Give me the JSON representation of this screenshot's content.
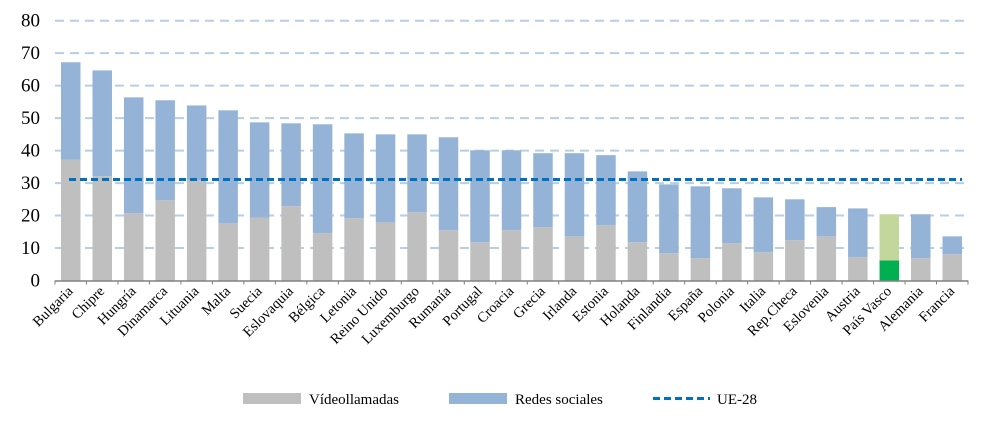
{
  "chart_data": {
    "type": "bar",
    "stacked": true,
    "categories": [
      "Bulgaria",
      "Chipre",
      "Hungría",
      "Dinamarca",
      "Lituania",
      "Malta",
      "Suecia",
      "Eslovaquia",
      "Bélgica",
      "Letonia",
      "Reino Unido",
      "Luxemburgo",
      "Rumanía",
      "Portugal",
      "Croacia",
      "Grecia",
      "Irlanda",
      "Estonia",
      "Holanda",
      "Finlandia",
      "España",
      "Polonia",
      "Italia",
      "Rep.Checa",
      "Eslovenia",
      "Austria",
      "País Vasco",
      "Alemania",
      "Francia"
    ],
    "series": [
      {
        "name": "Vídeollamadas",
        "color": "#bfbfbf",
        "highlight_color": "#00b050",
        "values": [
          37.2,
          32.1,
          20.7,
          24.7,
          30.9,
          17.6,
          19.4,
          22.9,
          14.6,
          19.2,
          17.9,
          21.0,
          15.5,
          11.8,
          15.5,
          16.4,
          13.6,
          17.0,
          11.8,
          8.4,
          6.9,
          11.5,
          8.7,
          12.4,
          13.6,
          7.2,
          6.2,
          6.9,
          8.1
        ]
      },
      {
        "name": "Redes sociales",
        "color": "#95b3d7",
        "highlight_color": "#c3d69b",
        "values": [
          30.0,
          32.6,
          35.7,
          30.8,
          23.0,
          34.8,
          29.3,
          25.5,
          33.5,
          26.1,
          27.1,
          24.0,
          28.6,
          28.3,
          24.6,
          22.8,
          25.6,
          21.6,
          21.8,
          21.2,
          22.1,
          16.9,
          16.9,
          12.6,
          9.0,
          15.0,
          14.2,
          13.5,
          5.5
        ]
      }
    ],
    "reference_line": {
      "name": "UE-28",
      "value": 31.1,
      "color": "#0070c0"
    },
    "highlight_category": "País Vasco",
    "ylim": [
      0,
      80
    ],
    "yticks": [
      0,
      10,
      20,
      30,
      40,
      50,
      60,
      70,
      80
    ],
    "grid": true,
    "legend": "bottom",
    "title": "",
    "xlabel": "",
    "ylabel": ""
  }
}
